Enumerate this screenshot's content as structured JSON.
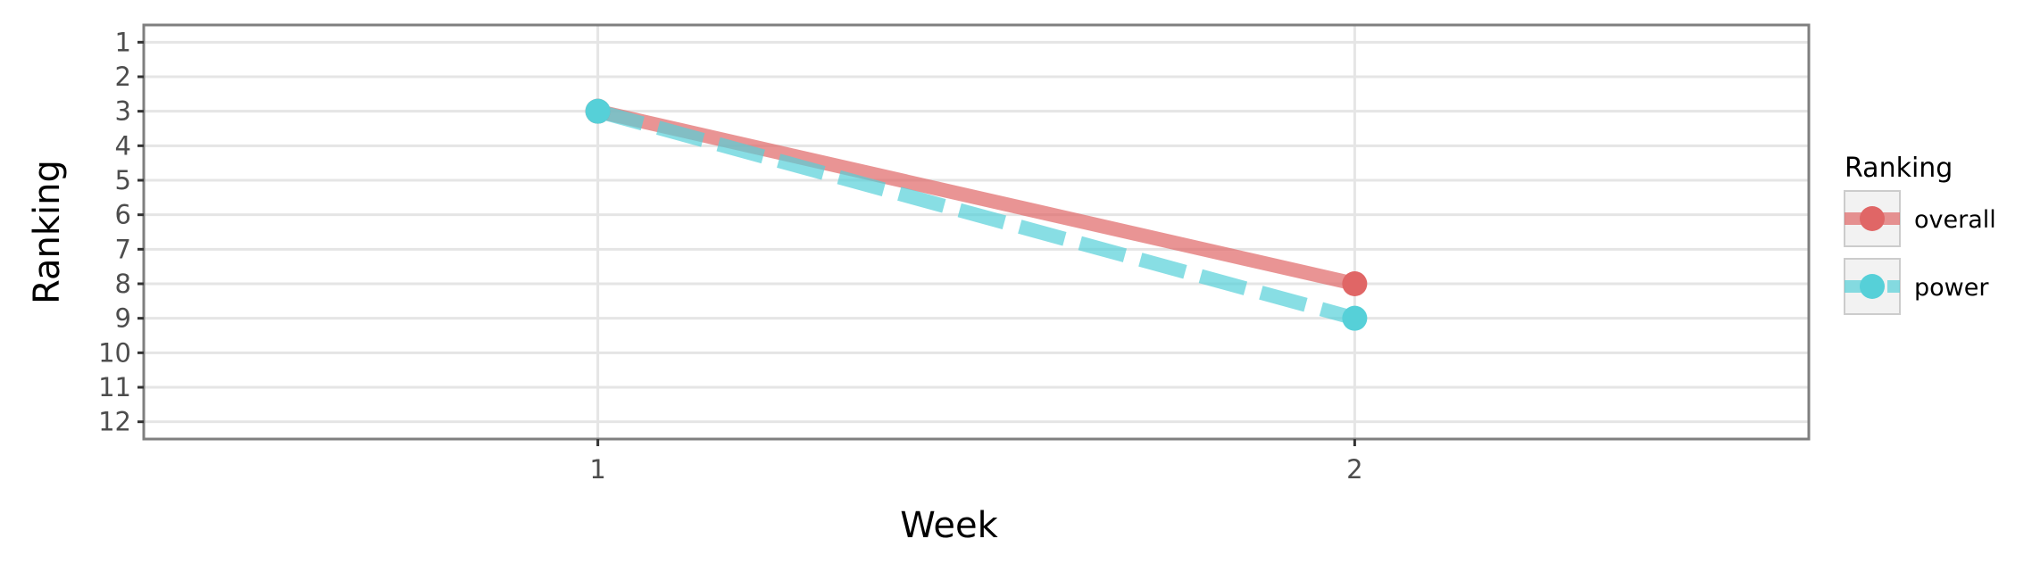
{
  "chart_data": {
    "type": "line",
    "title": "",
    "xlabel": "Week",
    "ylabel": "Ranking",
    "x": [
      1,
      2
    ],
    "xlim": [
      0.4,
      2.6
    ],
    "ylim": [
      12.5,
      0.5
    ],
    "y_reversed": true,
    "x_ticks": [
      "1",
      "2"
    ],
    "y_ticks": [
      "1",
      "2",
      "3",
      "4",
      "5",
      "6",
      "7",
      "8",
      "9",
      "10",
      "11",
      "12"
    ],
    "grid": true,
    "legend": {
      "title": "Ranking",
      "position": "right"
    },
    "series": [
      {
        "name": "overall",
        "values": [
          3,
          8
        ],
        "color": "#e06666",
        "line_style": "solid"
      },
      {
        "name": "power",
        "values": [
          3,
          9
        ],
        "color": "#56d0d8",
        "line_style": "dashed"
      }
    ]
  }
}
